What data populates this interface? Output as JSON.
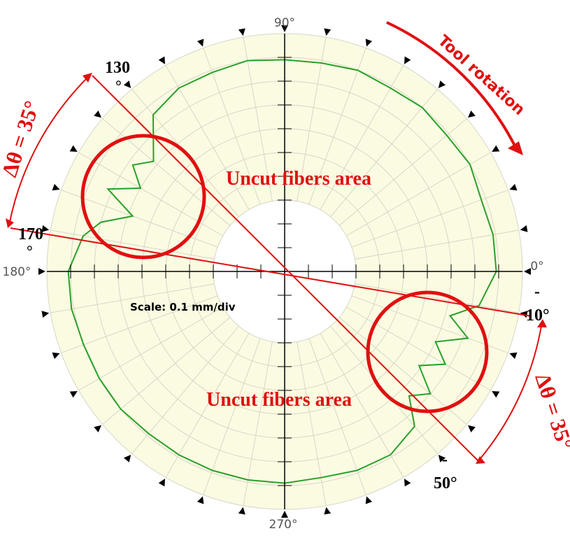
{
  "chart_data": {
    "type": "polar",
    "scale_label": "Scale: 0.1 mm/div",
    "angle_labels": [
      "0°",
      "90°",
      "180°",
      "270°"
    ],
    "marker_step_deg": 10,
    "radial_grid": {
      "rings": 10,
      "shaded_from_ring": 3,
      "spokes_step_deg": 10
    },
    "series": [
      {
        "type": "line",
        "description_note": "",
        "color": "#2aa02a",
        "base_radius_div": 9.0,
        "points_deg_r": [
          [
            0,
            8.9
          ],
          [
            10,
            8.9
          ],
          [
            20,
            8.8
          ],
          [
            30,
            9.0
          ],
          [
            40,
            8.9
          ],
          [
            50,
            9.0
          ],
          [
            60,
            8.9
          ],
          [
            70,
            9.0
          ],
          [
            80,
            8.9
          ],
          [
            90,
            8.9
          ],
          [
            100,
            9.0
          ],
          [
            110,
            8.9
          ],
          [
            120,
            8.9
          ],
          [
            130,
            8.6
          ],
          [
            140,
            7.2
          ],
          [
            145,
            7.8
          ],
          [
            150,
            7.0
          ],
          [
            155,
            8.2
          ],
          [
            160,
            6.8
          ],
          [
            165,
            8.0
          ],
          [
            170,
            8.6
          ],
          [
            180,
            9.1
          ],
          [
            190,
            9.1
          ],
          [
            200,
            9.0
          ],
          [
            210,
            9.0
          ],
          [
            220,
            9.0
          ],
          [
            230,
            8.9
          ],
          [
            240,
            8.9
          ],
          [
            250,
            8.9
          ],
          [
            260,
            8.9
          ],
          [
            270,
            8.9
          ],
          [
            280,
            8.8
          ],
          [
            290,
            8.9
          ],
          [
            300,
            8.9
          ],
          [
            310,
            8.5
          ],
          [
            315,
            7.4
          ],
          [
            320,
            8.0
          ],
          [
            325,
            6.9
          ],
          [
            330,
            7.8
          ],
          [
            335,
            7.0
          ],
          [
            340,
            8.2
          ],
          [
            345,
            7.2
          ],
          [
            350,
            8.3
          ],
          [
            360,
            8.9
          ]
        ]
      }
    ]
  },
  "annotations": {
    "tool_rotation": "Tool rotation",
    "uncut_upper": "Uncut fibers area",
    "uncut_lower": "Uncut fibers area",
    "delta_left": "Δθ = 35°",
    "delta_right": "Δθ = 35°",
    "label_130_num": "130",
    "label_130_deg": "°",
    "label_170_num": "170",
    "label_170_deg": "°",
    "label_m10_sign": "-",
    "label_m10_val": "10°",
    "label_m50_sign": "-",
    "label_m50_val": "50°"
  },
  "colors": {
    "shade": "#fbfbe2",
    "grid": "#d6d6c8",
    "axis": "#000000",
    "annotation": "#e01010",
    "trace": "#2aa02a"
  }
}
